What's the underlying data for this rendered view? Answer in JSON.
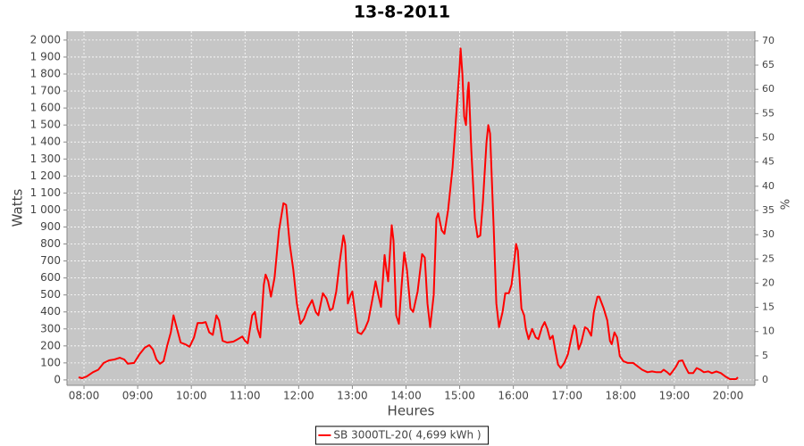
{
  "chart_data": {
    "type": "line",
    "title": "13-8-2011",
    "x_label": "Heures",
    "y_label": "Watts",
    "y2_label": "%",
    "x": [
      "07:54",
      "07:58",
      "08:03",
      "08:10",
      "08:16",
      "08:22",
      "08:28",
      "08:34",
      "08:40",
      "08:45",
      "08:49",
      "08:56",
      "09:02",
      "09:08",
      "09:13",
      "09:17",
      "09:21",
      "09:25",
      "09:29",
      "09:33",
      "09:37",
      "09:40",
      "09:44",
      "09:48",
      "09:53",
      "09:58",
      "10:03",
      "10:07",
      "10:12",
      "10:16",
      "10:20",
      "10:24",
      "10:28",
      "10:31",
      "10:35",
      "10:40",
      "10:47",
      "10:52",
      "10:57",
      "11:00",
      "11:03",
      "11:08",
      "11:11",
      "11:14",
      "11:17",
      "11:21",
      "11:23",
      "11:26",
      "11:29",
      "11:33",
      "11:38",
      "11:43",
      "11:46",
      "11:50",
      "11:54",
      "11:58",
      "12:02",
      "12:06",
      "12:10",
      "12:15",
      "12:19",
      "12:22",
      "12:27",
      "12:31",
      "12:35",
      "12:38",
      "12:42",
      "12:46",
      "12:50",
      "12:52",
      "12:55",
      "12:58",
      "13:00",
      "13:03",
      "13:06",
      "13:10",
      "13:14",
      "13:18",
      "13:23",
      "13:26",
      "13:29",
      "13:32",
      "13:36",
      "13:38",
      "13:40",
      "13:44",
      "13:46",
      "13:49",
      "13:52",
      "13:55",
      "13:58",
      "14:01",
      "14:05",
      "14:08",
      "14:13",
      "14:18",
      "14:21",
      "14:24",
      "14:27",
      "14:31",
      "14:34",
      "14:36",
      "14:40",
      "14:43",
      "14:47",
      "14:52",
      "14:56",
      "15:00",
      "15:01",
      "15:03",
      "15:05",
      "15:07",
      "15:09",
      "15:10",
      "15:13",
      "15:17",
      "15:20",
      "15:23",
      "15:26",
      "15:30",
      "15:32",
      "15:34",
      "15:38",
      "15:41",
      "15:44",
      "15:48",
      "15:51",
      "15:55",
      "15:58",
      "16:01",
      "16:03",
      "16:05",
      "16:09",
      "16:12",
      "16:14",
      "16:17",
      "16:21",
      "16:25",
      "16:28",
      "16:32",
      "16:35",
      "16:38",
      "16:41",
      "16:44",
      "16:47",
      "16:50",
      "16:53",
      "16:57",
      "17:01",
      "17:05",
      "17:08",
      "17:10",
      "17:13",
      "17:16",
      "17:20",
      "17:23",
      "17:27",
      "17:30",
      "17:34",
      "17:36",
      "17:41",
      "17:45",
      "17:48",
      "17:50",
      "17:53",
      "17:56",
      "17:59",
      "18:03",
      "18:08",
      "18:14",
      "18:19",
      "18:24",
      "18:30",
      "18:35",
      "18:40",
      "18:45",
      "18:48",
      "18:52",
      "18:55",
      "18:58",
      "19:02",
      "19:05",
      "19:09",
      "19:12",
      "19:16",
      "19:21",
      "19:25",
      "19:29",
      "19:33",
      "19:38",
      "19:42",
      "19:47",
      "19:52",
      "19:57",
      "20:02",
      "20:06",
      "20:09",
      "20:11"
    ],
    "series": [
      {
        "name": "SB 3000TL-20( 4,699 kWh )",
        "color": "#ff0000",
        "values": [
          15,
          10,
          20,
          45,
          60,
          100,
          115,
          120,
          130,
          120,
          95,
          100,
          150,
          190,
          205,
          180,
          120,
          95,
          110,
          200,
          280,
          380,
          300,
          220,
          210,
          195,
          250,
          335,
          335,
          340,
          280,
          265,
          380,
          350,
          230,
          220,
          225,
          240,
          255,
          230,
          215,
          380,
          400,
          300,
          250,
          560,
          620,
          580,
          490,
          600,
          880,
          1040,
          1030,
          800,
          650,
          450,
          330,
          360,
          420,
          470,
          400,
          380,
          510,
          480,
          410,
          420,
          520,
          700,
          850,
          800,
          450,
          500,
          520,
          400,
          280,
          270,
          300,
          350,
          490,
          580,
          500,
          430,
          735,
          650,
          580,
          910,
          820,
          380,
          330,
          550,
          750,
          650,
          420,
          400,
          520,
          740,
          720,
          450,
          310,
          500,
          950,
          980,
          880,
          860,
          1000,
          1250,
          1550,
          1850,
          1950,
          1800,
          1550,
          1500,
          1700,
          1750,
          1350,
          950,
          840,
          850,
          1050,
          1400,
          1500,
          1450,
          900,
          450,
          310,
          400,
          510,
          510,
          560,
          700,
          800,
          760,
          420,
          380,
          300,
          240,
          300,
          250,
          240,
          310,
          340,
          300,
          240,
          260,
          170,
          90,
          70,
          100,
          150,
          250,
          320,
          300,
          180,
          220,
          310,
          300,
          260,
          400,
          490,
          490,
          420,
          350,
          230,
          210,
          280,
          250,
          140,
          110,
          100,
          100,
          80,
          60,
          45,
          50,
          45,
          45,
          60,
          45,
          30,
          50,
          80,
          110,
          115,
          80,
          40,
          40,
          70,
          60,
          45,
          50,
          40,
          50,
          40,
          20,
          5,
          5,
          5,
          15
        ]
      }
    ],
    "xlim": [
      "07:41",
      "20:30"
    ],
    "xticks": [
      "08:00",
      "09:00",
      "10:00",
      "11:00",
      "12:00",
      "13:00",
      "14:00",
      "15:00",
      "16:00",
      "17:00",
      "18:00",
      "19:00",
      "20:00"
    ],
    "ylim": [
      -32,
      2052
    ],
    "yticks": [
      0,
      100,
      200,
      300,
      400,
      500,
      600,
      700,
      800,
      900,
      {
        "value": 1000,
        "label": "1 000"
      },
      {
        "value": 1100,
        "label": "1 100"
      },
      {
        "value": 1200,
        "label": "1 200"
      },
      {
        "value": 1300,
        "label": "1 300"
      },
      {
        "value": 1400,
        "label": "1 400"
      },
      {
        "value": 1500,
        "label": "1 500"
      },
      {
        "value": 1600,
        "label": "1 600"
      },
      {
        "value": 1700,
        "label": "1 700"
      },
      {
        "value": 1800,
        "label": "1 800"
      },
      {
        "value": 1900,
        "label": "1 900"
      },
      {
        "value": 2000,
        "label": "2 000"
      }
    ],
    "y2lim": [
      -1.1,
      72
    ],
    "y2ticks": [
      0,
      5,
      10,
      15,
      20,
      25,
      30,
      35,
      40,
      45,
      50,
      55,
      60,
      65,
      70
    ],
    "grid": true,
    "legend": "bottom"
  }
}
